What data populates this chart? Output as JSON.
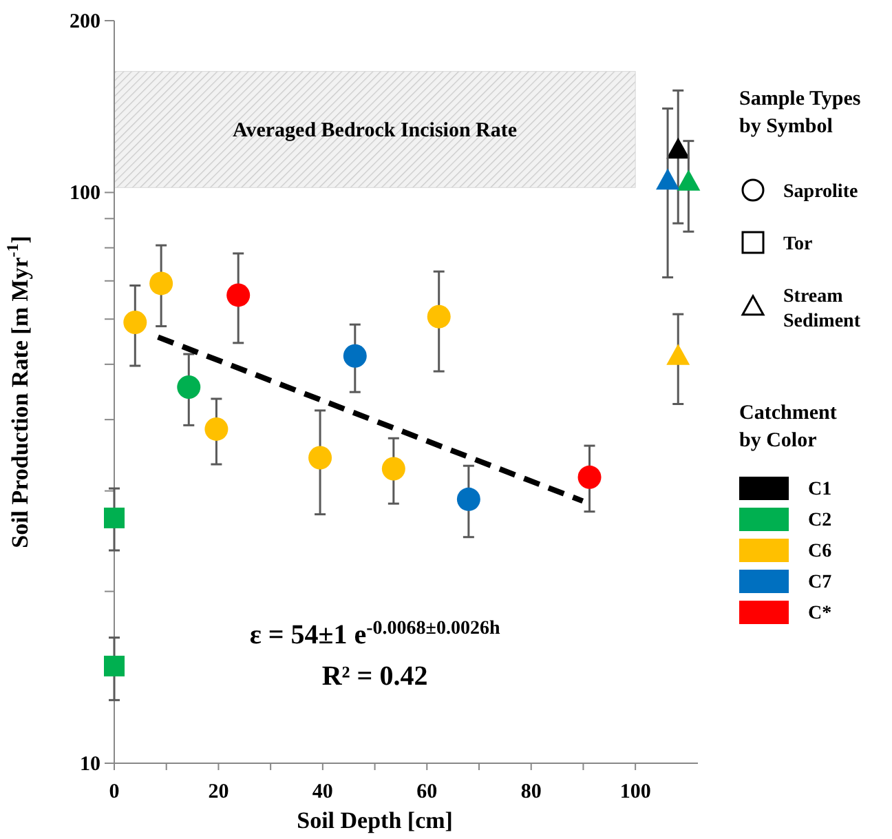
{
  "chart_data": {
    "type": "scatter",
    "xlabel": "Soil Depth [cm]",
    "ylabel": "Soil Production Rate [m Myr$^{-1}$]",
    "xlim": [
      0,
      112
    ],
    "xticks": [
      0,
      {
        "value": 10,
        "label": null
      },
      20,
      {
        "value": 30,
        "label": null
      },
      40,
      {
        "value": 50,
        "label": null
      },
      60,
      {
        "value": 70,
        "label": null
      },
      80,
      {
        "value": 90,
        "label": null
      },
      100
    ],
    "ylim": [
      10,
      200
    ],
    "yticks": [
      10,
      {
        "value": 20,
        "label": null
      },
      {
        "value": 30,
        "label": null
      },
      {
        "value": 40,
        "label": null
      },
      {
        "value": 50,
        "label": null
      },
      {
        "value": 60,
        "label": null
      },
      {
        "value": 70,
        "label": null
      },
      {
        "value": 80,
        "label": null
      },
      {
        "value": 90,
        "label": null
      },
      100,
      200
    ],
    "log": "y",
    "grid": false,
    "legend": "right",
    "legend_title": [
      "Sample Types by Symbol",
      "Catchment by Color"
    ],
    "bands": [
      {
        "axis": "y",
        "from": 102,
        "to": 163,
        "label": "Averaged Bedrock Incision Rate",
        "color": "#d9d9d9"
      }
    ],
    "annotations": [
      "Saprolite",
      "Tor",
      "Stream Sediment",
      "ε = 54±1 e$^{-0.0068±0.0026h}$",
      "R² = 0.42"
    ],
    "series": [
      {
        "name": "C1",
        "color": "#000000",
        "marker": "triangle",
        "x": [
          108.2
        ],
        "values": [
          118.6
        ],
        "errors": [
          [
            88.3,
            150.9
          ]
        ]
      },
      {
        "name": "C2",
        "color": "#00b050",
        "marker": "circle",
        "x": [
          14.3
        ],
        "values": [
          45.6
        ],
        "errors": [
          [
            39.1,
            52.1
          ]
        ]
      },
      {
        "color": "#00b050",
        "marker": "square",
        "x": [
          0,
          0
        ],
        "values": [
          26.9,
          14.8
        ],
        "errors": [
          [
            23.6,
            30.3
          ],
          [
            12.9,
            16.6
          ]
        ]
      },
      {
        "color": "#00b050",
        "marker": "triangle",
        "x": [
          110.2
        ],
        "values": [
          104.2
        ],
        "errors": [
          [
            85.4,
            123.1
          ]
        ]
      },
      {
        "name": "C6",
        "color": "#ffc000",
        "marker": "circle",
        "x": [
          4.0,
          9.0,
          19.6,
          39.5,
          53.6,
          62.3
        ],
        "values": [
          59.2,
          69.3,
          38.5,
          34.3,
          32.8,
          60.6
        ],
        "errors": [
          [
            49.7,
            68.7
          ],
          [
            58.3,
            80.8
          ],
          [
            33.4,
            43.5
          ],
          [
            27.3,
            41.5
          ],
          [
            28.5,
            37.1
          ],
          [
            48.6,
            72.7
          ]
        ]
      },
      {
        "color": "#ffc000",
        "marker": "triangle",
        "x": [
          108.2
        ],
        "values": [
          51.6
        ],
        "errors": [
          [
            42.6,
            61.2
          ]
        ]
      },
      {
        "name": "C7",
        "color": "#0070c0",
        "marker": "circle",
        "x": [
          46.2,
          68.0
        ],
        "values": [
          51.7,
          29.0
        ],
        "errors": [
          [
            44.7,
            58.7
          ],
          [
            24.9,
            33.2
          ]
        ]
      },
      {
        "color": "#0070c0",
        "marker": "triangle",
        "x": [
          106.2
        ],
        "values": [
          104.7
        ],
        "errors": [
          [
            71.0,
            140.3
          ]
        ]
      },
      {
        "name": "C*",
        "color": "#ff0000",
        "marker": "circle",
        "x": [
          23.8,
          91.2
        ],
        "values": [
          66.1,
          31.7
        ],
        "errors": [
          [
            54.5,
            78.2
          ],
          [
            27.6,
            36.0
          ]
        ]
      },
      {
        "type": "line",
        "color": "#000000",
        "marker": "none",
        "line_style": "dashed",
        "x": [
          8.4,
          89.9
        ],
        "values": [
          55.8,
          28.8
        ]
      }
    ]
  }
}
